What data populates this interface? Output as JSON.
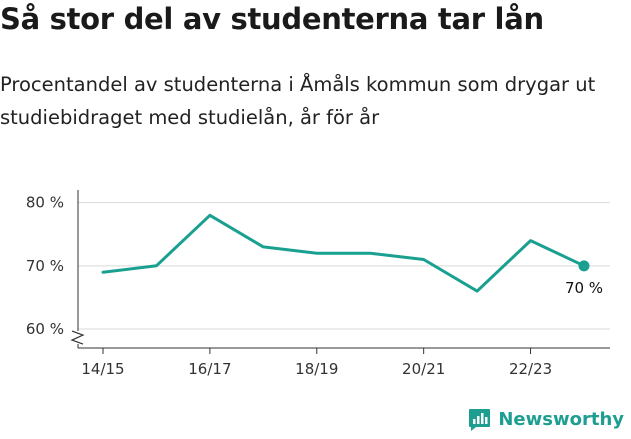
{
  "title": "Så stor del av studenterna tar lån",
  "subtitle": "Procentandel av studenterna i Åmåls kommun som drygar ut studiebidraget med studielån, år för år",
  "brand": "Newsworthy",
  "colors": {
    "line": "#1aa091",
    "grid": "#d9d9d9",
    "axis": "#333333"
  },
  "chart_data": {
    "type": "line",
    "x": [
      "14/15",
      "15/16",
      "16/17",
      "17/18",
      "18/19",
      "19/20",
      "20/21",
      "21/22",
      "22/23",
      "23/24"
    ],
    "values": [
      69,
      70,
      78,
      73,
      72,
      72,
      71,
      66,
      74,
      70
    ],
    "x_tick_labels": [
      "14/15",
      "16/17",
      "18/19",
      "20/21",
      "22/23"
    ],
    "y_ticks": [
      60,
      70,
      80
    ],
    "y_tick_labels": [
      "60 %",
      "70 %",
      "80 %"
    ],
    "ylim": [
      57,
      82
    ],
    "y_axis_break": true,
    "grid": true,
    "end_label": "70 %",
    "title": "",
    "xlabel": "",
    "ylabel": ""
  }
}
